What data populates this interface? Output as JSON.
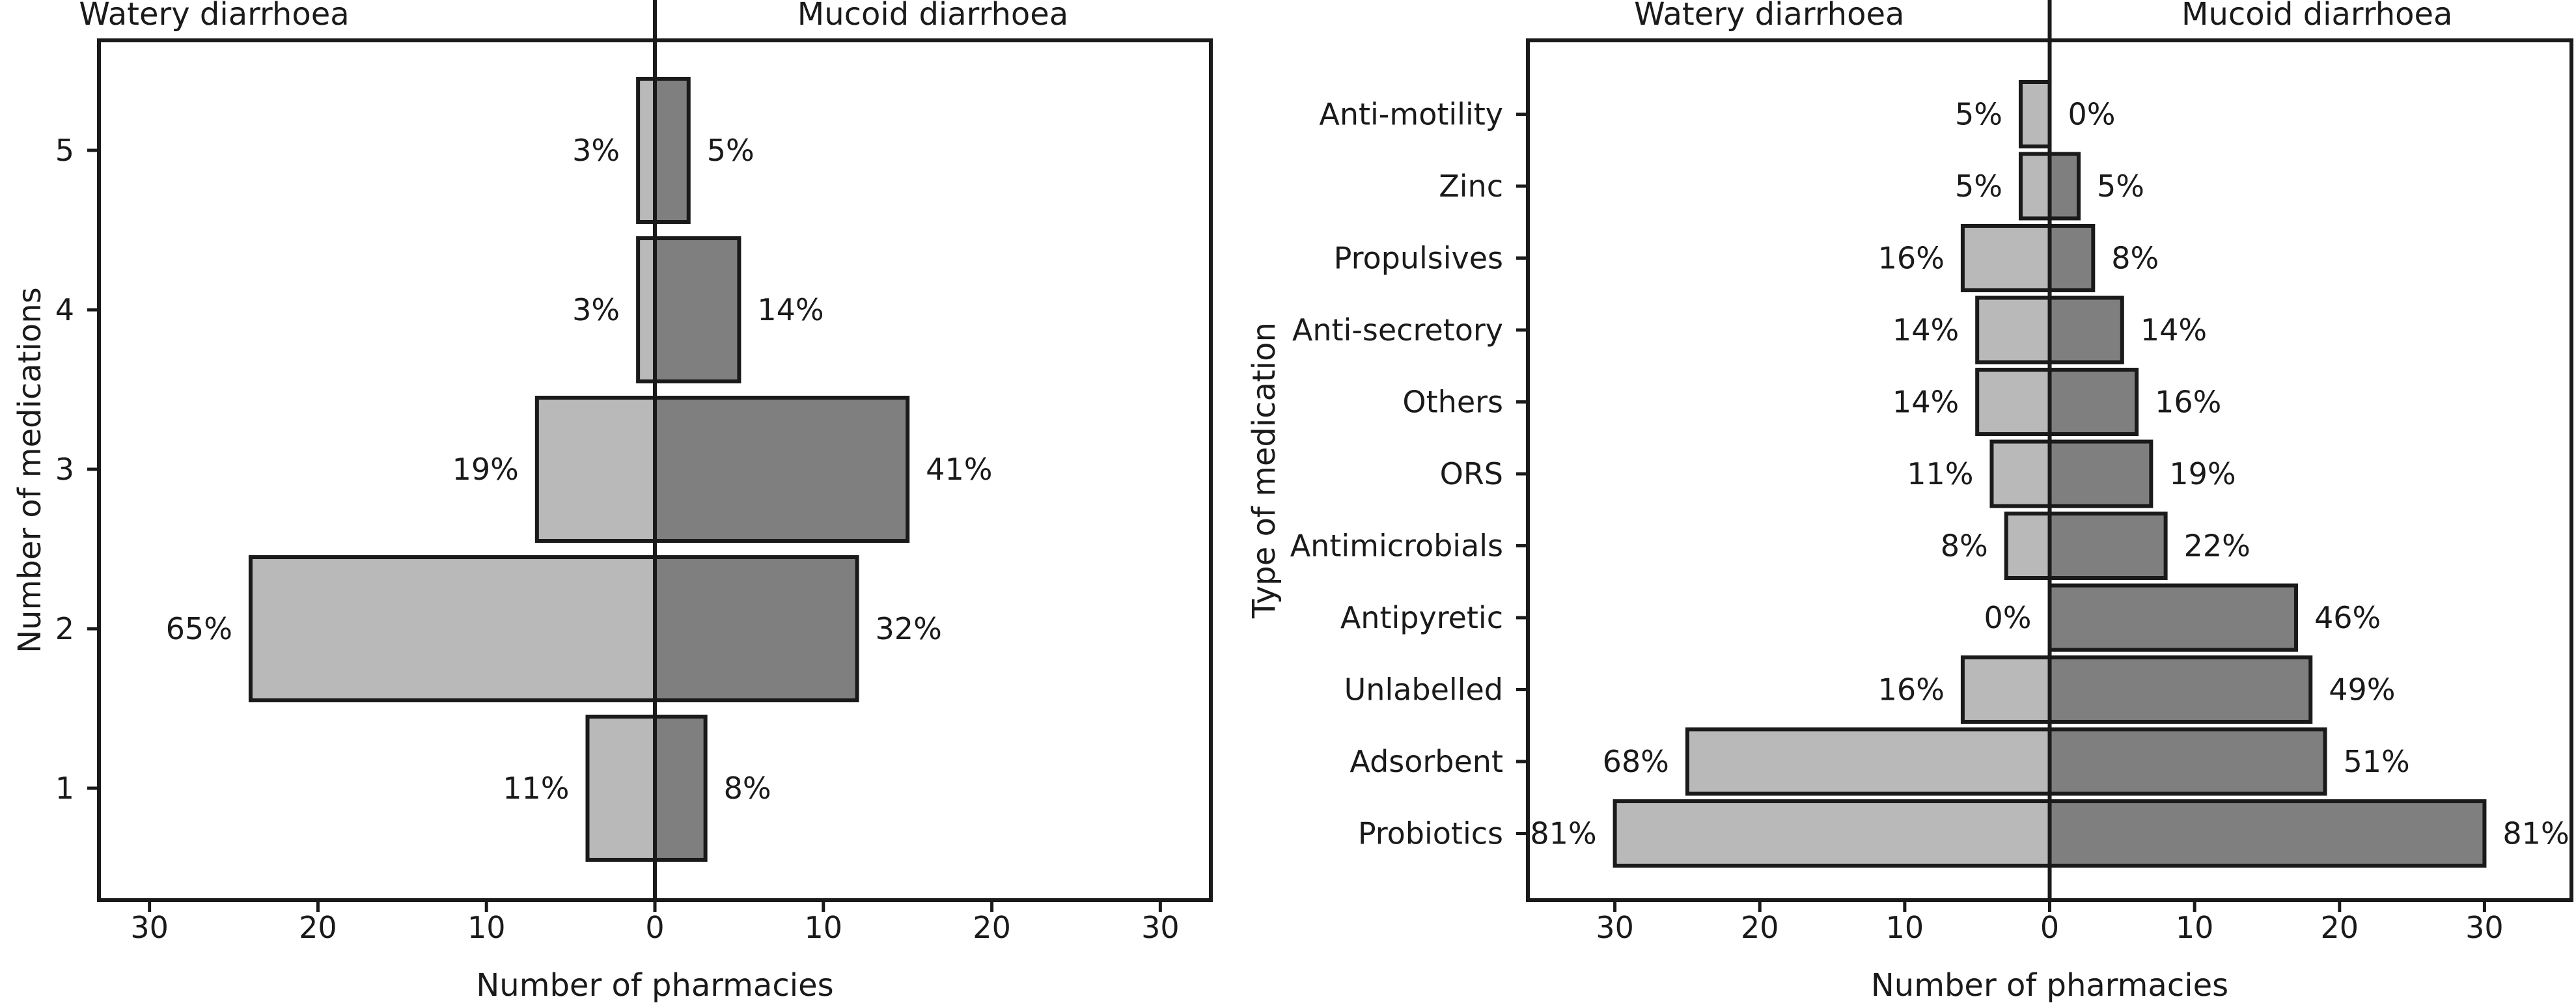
{
  "colors": {
    "watery": "#b9b9b9",
    "mucoid": "#7f7f7f",
    "stroke": "#1a1a1a"
  },
  "chart_data": [
    {
      "type": "bar",
      "orientation": "horizontal-diverging",
      "xlabel": "Number of pharmacies",
      "ylabel": "Number of medications",
      "xlim": [
        -33,
        33
      ],
      "xticks": [
        -30,
        -20,
        -10,
        0,
        10,
        20,
        30
      ],
      "xtick_labels": [
        "30",
        "20",
        "10",
        "0",
        "10",
        "20",
        "30"
      ],
      "categories": [
        "5",
        "4",
        "3",
        "2",
        "1"
      ],
      "series": [
        {
          "name": "Watery diarrhoea",
          "values": [
            1,
            1,
            7,
            24,
            4
          ],
          "labels": [
            "3%",
            "3%",
            "19%",
            "65%",
            "11%"
          ]
        },
        {
          "name": "Mucoid diarrhoea",
          "values": [
            2,
            5,
            15,
            12,
            3
          ],
          "labels": [
            "5%",
            "14%",
            "41%",
            "32%",
            "8%"
          ]
        }
      ],
      "legend": "top"
    },
    {
      "type": "bar",
      "orientation": "horizontal-diverging",
      "xlabel": "Number of pharmacies",
      "ylabel": "Type of medication",
      "xlim": [
        -36,
        36
      ],
      "xticks": [
        -30,
        -20,
        -10,
        0,
        10,
        20,
        30
      ],
      "xtick_labels": [
        "30",
        "20",
        "10",
        "0",
        "10",
        "20",
        "30"
      ],
      "categories": [
        "Anti-motility",
        "Zinc",
        "Propulsives",
        "Anti-secretory",
        "Others",
        "ORS",
        "Antimicrobials",
        "Antipyretic",
        "Unlabelled",
        "Adsorbent",
        "Probiotics"
      ],
      "series": [
        {
          "name": "Watery diarrhoea",
          "values": [
            2,
            2,
            6,
            5,
            5,
            4,
            3,
            0,
            6,
            25,
            30
          ],
          "labels": [
            "5%",
            "5%",
            "16%",
            "14%",
            "14%",
            "11%",
            "8%",
            "0%",
            "16%",
            "68%",
            "81%"
          ]
        },
        {
          "name": "Mucoid diarrhoea",
          "values": [
            0,
            2,
            3,
            5,
            6,
            7,
            8,
            17,
            18,
            19,
            30
          ],
          "labels": [
            "0%",
            "5%",
            "8%",
            "14%",
            "16%",
            "19%",
            "22%",
            "46%",
            "49%",
            "51%",
            "81%"
          ]
        }
      ],
      "legend": "top"
    }
  ]
}
